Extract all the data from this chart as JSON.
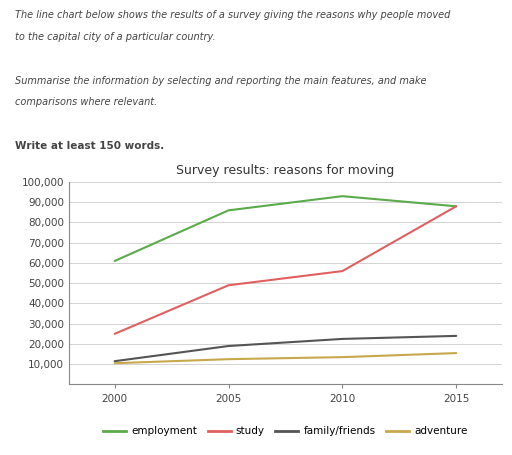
{
  "title": "Survey results: reasons for moving",
  "years": [
    2000,
    2005,
    2010,
    2015
  ],
  "series": {
    "employment": {
      "values": [
        61000,
        86000,
        93000,
        88000
      ],
      "color": "#5aab4a",
      "linewidth": 1.5
    },
    "study": {
      "values": [
        25000,
        49000,
        56000,
        88000
      ],
      "color": "#e06060",
      "linewidth": 1.5
    },
    "family/friends": {
      "values": [
        11500,
        19000,
        22500,
        24000
      ],
      "color": "#555555",
      "linewidth": 1.5
    },
    "adventure": {
      "values": [
        10500,
        12500,
        13500,
        15500
      ],
      "color": "#c8a84b",
      "linewidth": 1.5
    }
  },
  "ylim": [
    0,
    100000
  ],
  "yticks": [
    0,
    10000,
    20000,
    30000,
    40000,
    50000,
    60000,
    70000,
    80000,
    90000,
    100000
  ],
  "ytick_labels": [
    "",
    "10,000",
    "20,000",
    "30,000",
    "40,000",
    "50,000",
    "60,000",
    "70,000",
    "80,000",
    "90,000",
    "100,000"
  ],
  "xticks": [
    2000,
    2005,
    2010,
    2015
  ],
  "grid_color": "#cccccc",
  "header_lines": [
    {
      "text": "The line chart below shows the results of a survey giving the reasons why people moved",
      "style": "italic",
      "weight": "normal",
      "size": 7.0
    },
    {
      "text": "to the capital city of a particular country.",
      "style": "italic",
      "weight": "normal",
      "size": 7.0
    },
    {
      "text": "",
      "style": "normal",
      "weight": "normal",
      "size": 7.0
    },
    {
      "text": "Summarise the information by selecting and reporting the main features, and make",
      "style": "italic",
      "weight": "normal",
      "size": 7.0
    },
    {
      "text": "comparisons where relevant.",
      "style": "italic",
      "weight": "normal",
      "size": 7.0
    },
    {
      "text": "",
      "style": "normal",
      "weight": "normal",
      "size": 7.0
    },
    {
      "text": "Write at least 150 words.",
      "style": "normal",
      "weight": "bold",
      "size": 7.5
    }
  ],
  "legend_labels": [
    "employment",
    "study",
    "family/friends",
    "adventure"
  ],
  "legend_colors": [
    "#5aab4a",
    "#e06060",
    "#555555",
    "#c8a84b"
  ]
}
